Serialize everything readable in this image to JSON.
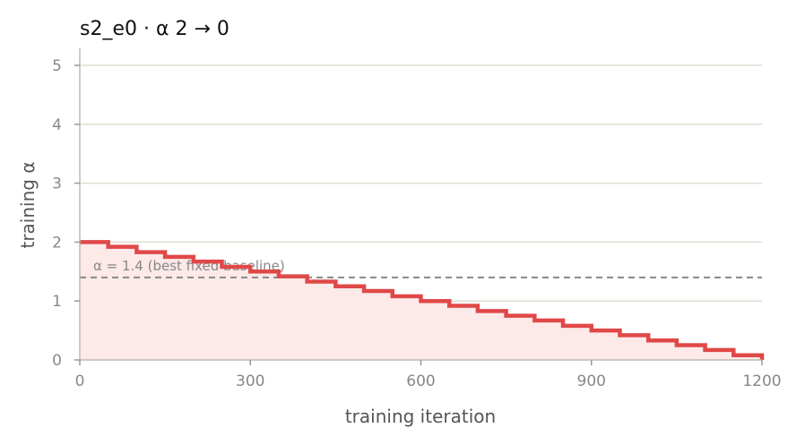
{
  "chart_data": {
    "type": "line",
    "title": "s2_e0   ·   α 2 → 0",
    "xlabel": "training iteration",
    "ylabel": "training α",
    "xlim": [
      0,
      1200
    ],
    "ylim": [
      0,
      5.3
    ],
    "xticks": [
      0,
      300,
      600,
      900,
      1200
    ],
    "yticks": [
      0,
      1,
      2,
      3,
      4,
      5
    ],
    "grid": "horizontal",
    "series": [
      {
        "style": "step",
        "color": "#e04848",
        "fill": "#fce9e8",
        "x": [
          0,
          50,
          100,
          150,
          200,
          250,
          300,
          350,
          400,
          450,
          500,
          550,
          600,
          650,
          700,
          750,
          800,
          850,
          900,
          950,
          1000,
          1050,
          1100,
          1150
        ],
        "values": [
          2.0,
          1.92,
          1.83,
          1.75,
          1.67,
          1.58,
          1.5,
          1.42,
          1.33,
          1.25,
          1.17,
          1.08,
          1.0,
          0.92,
          0.83,
          0.75,
          0.67,
          0.58,
          0.5,
          0.42,
          0.33,
          0.25,
          0.17,
          0.08
        ],
        "x_end": 1200,
        "end_value": 0.0
      }
    ],
    "reference_line": {
      "value": 1.4,
      "label": "α = 1.4 (best fixed baseline)",
      "color": "#888888"
    }
  }
}
